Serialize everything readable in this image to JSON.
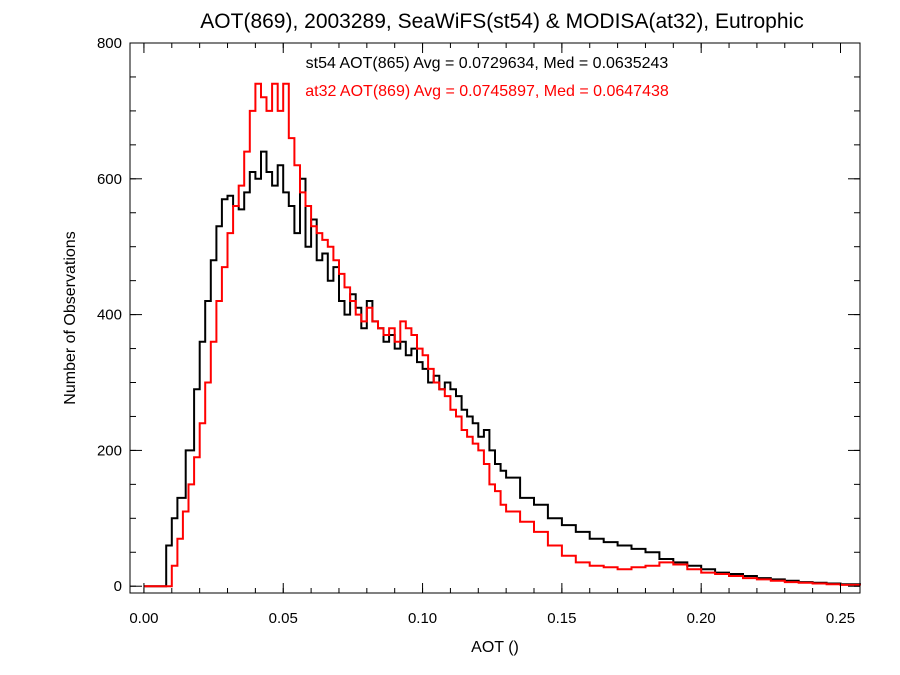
{
  "chart_data": {
    "type": "line",
    "title": "AOT(869), 2003289, SeaWiFS(st54) & MODISA(at32), Eutrophic",
    "xlabel": "AOT ()",
    "ylabel": "Number of Observations",
    "xlim": [
      -0.005,
      0.257
    ],
    "ylim": [
      -10,
      800
    ],
    "xticks": [
      0.0,
      0.05,
      0.1,
      0.15,
      0.2,
      0.25
    ],
    "xtick_labels": [
      "0.00",
      "0.05",
      "0.10",
      "0.15",
      "0.20",
      "0.25"
    ],
    "yticks": [
      0,
      200,
      400,
      600,
      800
    ],
    "ytick_labels": [
      "0",
      "200",
      "400",
      "600",
      "800"
    ],
    "grid": false,
    "annotations": [
      {
        "text": "st54 AOT(865) Avg = 0.0729634, Med = 0.0635243",
        "color": "#000000"
      },
      {
        "text": "at32 AOT(869) Avg = 0.0745897, Med = 0.0647438",
        "color": "#ff0000"
      }
    ],
    "series": [
      {
        "color": "#000000",
        "x": [
          0.0,
          0.005,
          0.008,
          0.01,
          0.012,
          0.015,
          0.018,
          0.02,
          0.022,
          0.024,
          0.026,
          0.028,
          0.03,
          0.032,
          0.034,
          0.036,
          0.038,
          0.04,
          0.042,
          0.044,
          0.046,
          0.048,
          0.05,
          0.052,
          0.054,
          0.056,
          0.058,
          0.06,
          0.062,
          0.064,
          0.066,
          0.068,
          0.07,
          0.072,
          0.074,
          0.076,
          0.078,
          0.08,
          0.082,
          0.084,
          0.086,
          0.088,
          0.09,
          0.092,
          0.094,
          0.096,
          0.098,
          0.1,
          0.102,
          0.104,
          0.106,
          0.108,
          0.11,
          0.112,
          0.114,
          0.116,
          0.118,
          0.12,
          0.122,
          0.124,
          0.126,
          0.128,
          0.13,
          0.135,
          0.14,
          0.145,
          0.15,
          0.155,
          0.16,
          0.165,
          0.17,
          0.175,
          0.18,
          0.185,
          0.19,
          0.195,
          0.2,
          0.205,
          0.21,
          0.215,
          0.22,
          0.225,
          0.23,
          0.235,
          0.24,
          0.245,
          0.25,
          0.257
        ],
        "y": [
          0,
          0,
          60,
          100,
          130,
          200,
          290,
          360,
          420,
          480,
          530,
          570,
          575,
          560,
          555,
          580,
          610,
          600,
          640,
          610,
          590,
          620,
          580,
          560,
          520,
          600,
          500,
          540,
          480,
          490,
          450,
          470,
          420,
          400,
          430,
          410,
          380,
          420,
          390,
          380,
          360,
          370,
          350,
          360,
          340,
          350,
          330,
          320,
          300,
          310,
          290,
          300,
          290,
          280,
          260,
          250,
          240,
          220,
          230,
          200,
          180,
          170,
          160,
          130,
          120,
          100,
          90,
          80,
          70,
          65,
          60,
          55,
          50,
          40,
          35,
          30,
          25,
          20,
          18,
          15,
          12,
          10,
          8,
          6,
          5,
          4,
          3,
          2
        ]
      },
      {
        "color": "#ff0000",
        "x": [
          0.0,
          0.009,
          0.01,
          0.012,
          0.014,
          0.016,
          0.018,
          0.02,
          0.022,
          0.024,
          0.026,
          0.028,
          0.03,
          0.032,
          0.034,
          0.036,
          0.038,
          0.04,
          0.042,
          0.044,
          0.046,
          0.048,
          0.05,
          0.052,
          0.054,
          0.056,
          0.058,
          0.06,
          0.062,
          0.064,
          0.066,
          0.068,
          0.07,
          0.072,
          0.074,
          0.076,
          0.078,
          0.08,
          0.082,
          0.084,
          0.086,
          0.088,
          0.09,
          0.092,
          0.094,
          0.096,
          0.098,
          0.1,
          0.102,
          0.104,
          0.106,
          0.108,
          0.11,
          0.112,
          0.114,
          0.116,
          0.118,
          0.12,
          0.122,
          0.124,
          0.126,
          0.128,
          0.13,
          0.135,
          0.14,
          0.145,
          0.15,
          0.155,
          0.16,
          0.165,
          0.17,
          0.175,
          0.18,
          0.185,
          0.19,
          0.195,
          0.2,
          0.205,
          0.21,
          0.215,
          0.22,
          0.225,
          0.23,
          0.235,
          0.24,
          0.245,
          0.25,
          0.257
        ],
        "y": [
          0,
          0,
          30,
          70,
          110,
          150,
          190,
          240,
          300,
          360,
          420,
          470,
          520,
          560,
          590,
          640,
          700,
          740,
          720,
          700,
          740,
          700,
          740,
          660,
          620,
          580,
          560,
          530,
          520,
          510,
          500,
          480,
          460,
          440,
          420,
          400,
          390,
          410,
          390,
          380,
          370,
          380,
          360,
          390,
          380,
          370,
          350,
          340,
          320,
          300,
          290,
          280,
          260,
          250,
          230,
          220,
          210,
          200,
          180,
          150,
          140,
          120,
          110,
          95,
          80,
          60,
          45,
          35,
          30,
          28,
          25,
          28,
          30,
          35,
          32,
          25,
          20,
          18,
          15,
          12,
          10,
          8,
          6,
          5,
          4,
          3,
          2,
          1
        ]
      }
    ]
  }
}
